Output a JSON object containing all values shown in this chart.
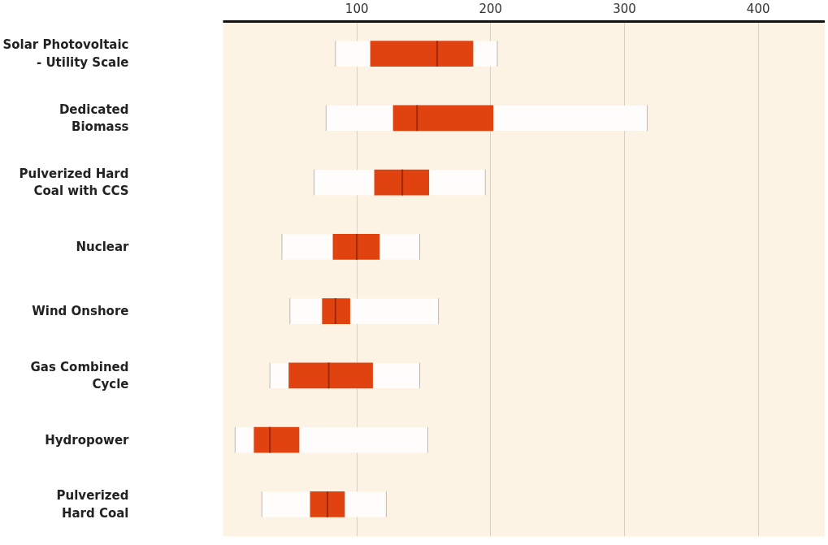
{
  "chart_data": {
    "type": "box",
    "orientation": "horizontal",
    "color": "#e0430f",
    "categories": [
      "Solar Photovoltaic\n- Utility Scale",
      "Dedicated\nBiomass",
      "Pulverized Hard\nCoal with CCS",
      "Nuclear",
      "Wind Onshore",
      "Gas Combined\nCycle",
      "Hydropower",
      "Pulverized\nHard Coal"
    ],
    "boxes": [
      {
        "low": 84,
        "q1": 110,
        "median": 160,
        "q3": 187,
        "high": 205
      },
      {
        "low": 77,
        "q1": 127,
        "median": 145,
        "q3": 202,
        "high": 317
      },
      {
        "low": 68,
        "q1": 113,
        "median": 134,
        "q3": 154,
        "high": 196
      },
      {
        "low": 44,
        "q1": 82,
        "median": 100,
        "q3": 117,
        "high": 147
      },
      {
        "low": 50,
        "q1": 74,
        "median": 84,
        "q3": 95,
        "high": 161
      },
      {
        "low": 35,
        "q1": 49,
        "median": 79,
        "q3": 112,
        "high": 147
      },
      {
        "low": 9,
        "q1": 23,
        "median": 35,
        "q3": 57,
        "high": 153
      },
      {
        "low": 29,
        "q1": 65,
        "median": 78,
        "q3": 91,
        "high": 122
      }
    ],
    "xlim": [
      0,
      450
    ],
    "xticks": [
      100,
      200,
      300,
      400
    ],
    "grid": "x"
  }
}
